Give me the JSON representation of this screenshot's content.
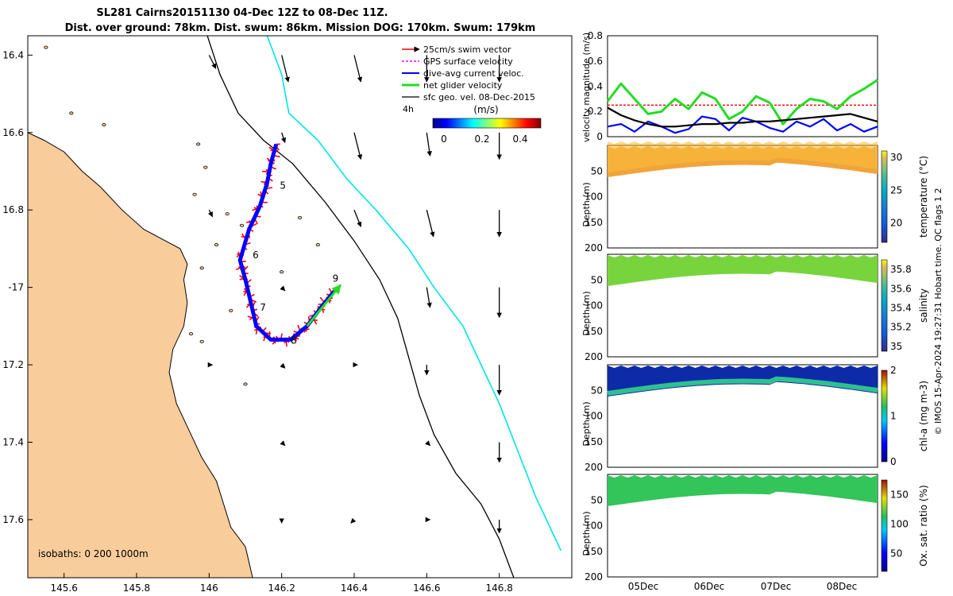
{
  "title": {
    "line1": "SL281 Cairns20151130 04-Dec 12Z to 08-Dec 11Z.",
    "line2": "Dist. over ground: 78km. Dist. swum: 86km. Mission DOG: 170km. Swum: 179km"
  },
  "colors": {
    "land": "#f9cc9b",
    "swim": "#ff0000",
    "gps": "#ff00ff",
    "current": "#0000ff",
    "net": "#22dd22",
    "geo": "#000000",
    "isobath200": "#000000",
    "isobath1000": "#00e5e5"
  },
  "chart_data": [
    {
      "type": "scatter",
      "name": "glider-track-map",
      "xlim": [
        145.5,
        147.0
      ],
      "ylim": [
        -17.75,
        -16.35
      ],
      "xticks": [
        145.6,
        145.8,
        146.0,
        146.2,
        146.4,
        146.6,
        146.8
      ],
      "xtick_labels": [
        "145.6",
        "145.8",
        "146",
        "146.2",
        "146.4",
        "146.6",
        "146.8"
      ],
      "yticks": [
        -16.4,
        -16.6,
        -16.8,
        -17.0,
        -17.2,
        -17.4,
        -17.6
      ],
      "ytick_labels": [
        "16.4",
        "16.6",
        "16.8",
        "-17",
        "17.2",
        "17.4",
        "17.6"
      ],
      "legend": [
        "25cm/s swim vector",
        "GPS surface velocity",
        "dive-avg current veloc.",
        "net glider velocity",
        "sfc geo. vel. 08-Dec-2015"
      ],
      "legend_extra": "4h",
      "colorbar": {
        "label": "(m/s)",
        "ticks": [
          "0",
          "0.2",
          "0.4"
        ],
        "range": [
          0,
          0.5
        ]
      },
      "isobath_label": "isobaths: 0   200  1000m",
      "track_labels": [
        {
          "text": "5",
          "lon": 146.195,
          "lat": -16.745
        },
        {
          "text": "6",
          "lon": 146.12,
          "lat": -16.925
        },
        {
          "text": "7",
          "lon": 146.14,
          "lat": -17.06
        },
        {
          "text": "8",
          "lon": 146.225,
          "lat": -17.145
        },
        {
          "text": "9",
          "lon": 146.34,
          "lat": -16.985
        }
      ],
      "track": [
        [
          146.185,
          -16.63
        ],
        [
          146.17,
          -16.68
        ],
        [
          146.16,
          -16.73
        ],
        [
          146.14,
          -16.79
        ],
        [
          146.11,
          -16.85
        ],
        [
          146.085,
          -16.93
        ],
        [
          146.1,
          -16.98
        ],
        [
          146.115,
          -17.04
        ],
        [
          146.13,
          -17.1
        ],
        [
          146.17,
          -17.135
        ],
        [
          146.225,
          -17.135
        ],
        [
          146.27,
          -17.1
        ],
        [
          146.31,
          -17.05
        ],
        [
          146.345,
          -17.01
        ]
      ],
      "isobath_200": [
        [
          145.995,
          -16.35
        ],
        [
          146.03,
          -16.45
        ],
        [
          146.08,
          -16.55
        ],
        [
          146.15,
          -16.62
        ],
        [
          146.23,
          -16.68
        ],
        [
          146.32,
          -16.78
        ],
        [
          146.4,
          -16.88
        ],
        [
          146.47,
          -16.98
        ],
        [
          146.52,
          -17.08
        ],
        [
          146.55,
          -17.18
        ],
        [
          146.58,
          -17.28
        ],
        [
          146.62,
          -17.38
        ],
        [
          146.68,
          -17.48
        ],
        [
          146.75,
          -17.56
        ],
        [
          146.8,
          -17.65
        ],
        [
          146.84,
          -17.75
        ]
      ],
      "isobath_1000": [
        [
          146.16,
          -16.35
        ],
        [
          146.2,
          -16.45
        ],
        [
          146.22,
          -16.55
        ],
        [
          146.3,
          -16.62
        ],
        [
          146.38,
          -16.72
        ],
        [
          146.46,
          -16.8
        ],
        [
          146.55,
          -16.9
        ],
        [
          146.62,
          -17.0
        ],
        [
          146.7,
          -17.1
        ],
        [
          146.75,
          -17.2
        ],
        [
          146.8,
          -17.3
        ],
        [
          146.85,
          -17.42
        ],
        [
          146.9,
          -17.54
        ],
        [
          146.97,
          -17.68
        ]
      ],
      "coast": [
        [
          145.5,
          -16.6
        ],
        [
          145.545,
          -16.62
        ],
        [
          145.6,
          -16.65
        ],
        [
          145.65,
          -16.7
        ],
        [
          145.7,
          -16.74
        ],
        [
          145.76,
          -16.8
        ],
        [
          145.82,
          -16.85
        ],
        [
          145.88,
          -16.88
        ],
        [
          145.92,
          -16.9
        ],
        [
          145.94,
          -16.94
        ],
        [
          145.93,
          -16.98
        ],
        [
          145.94,
          -17.04
        ],
        [
          145.93,
          -17.1
        ],
        [
          145.9,
          -17.16
        ],
        [
          145.89,
          -17.22
        ],
        [
          145.91,
          -17.3
        ],
        [
          145.95,
          -17.38
        ],
        [
          145.98,
          -17.44
        ],
        [
          146.02,
          -17.5
        ],
        [
          146.04,
          -17.56
        ],
        [
          146.06,
          -17.62
        ],
        [
          146.1,
          -17.67
        ],
        [
          146.12,
          -17.75
        ]
      ],
      "geo_vectors": [
        [
          146.0,
          -16.4,
          0.02,
          -0.04
        ],
        [
          146.2,
          -16.4,
          0.02,
          -0.08
        ],
        [
          146.4,
          -16.4,
          0.02,
          -0.08
        ],
        [
          146.6,
          -16.4,
          0.0,
          -0.08
        ],
        [
          146.8,
          -16.4,
          0.0,
          -0.08
        ],
        [
          146.2,
          -16.6,
          0.01,
          -0.03
        ],
        [
          146.4,
          -16.6,
          0.02,
          -0.08
        ],
        [
          146.6,
          -16.6,
          0.01,
          -0.07
        ],
        [
          146.8,
          -16.6,
          0.0,
          -0.08
        ],
        [
          146.0,
          -16.8,
          0.01,
          -0.02
        ],
        [
          146.4,
          -16.8,
          0.02,
          -0.05
        ],
        [
          146.6,
          -16.8,
          0.02,
          -0.08
        ],
        [
          146.8,
          -16.8,
          0.0,
          -0.08
        ],
        [
          146.2,
          -17.0,
          0.01,
          -0.01
        ],
        [
          146.6,
          -17.0,
          0.01,
          -0.06
        ],
        [
          146.8,
          -17.0,
          0.0,
          -0.09
        ],
        [
          146.0,
          -17.2,
          0.01,
          0.0
        ],
        [
          146.2,
          -17.2,
          0.01,
          -0.01
        ],
        [
          146.4,
          -17.2,
          0.01,
          0.0
        ],
        [
          146.6,
          -17.2,
          0.0,
          -0.03
        ],
        [
          146.8,
          -17.2,
          0.0,
          -0.09
        ],
        [
          146.2,
          -17.4,
          0.01,
          -0.01
        ],
        [
          146.6,
          -17.4,
          0.01,
          -0.01
        ],
        [
          146.8,
          -17.4,
          0.0,
          -0.06
        ],
        [
          146.2,
          -17.6,
          0.0,
          -0.01
        ],
        [
          146.4,
          -17.6,
          -0.01,
          -0.01
        ],
        [
          146.6,
          -17.6,
          0.01,
          0.0
        ],
        [
          146.8,
          -17.6,
          0.0,
          -0.04
        ]
      ]
    },
    {
      "type": "line",
      "name": "velocity-magnitude",
      "ylabel": "velocity magnitude (m/s)",
      "xlim": [
        0,
        1
      ],
      "ylim": [
        0,
        0.8
      ],
      "yticks": [
        "0",
        "0.2",
        "0.4",
        "0.6",
        "0.8"
      ],
      "series": [
        {
          "name": "swim",
          "color": "#ff0000",
          "values": [
            0.25,
            0.25,
            0.25,
            0.25,
            0.25,
            0.25,
            0.25,
            0.25,
            0.25,
            0.25,
            0.25,
            0.25,
            0.25,
            0.25,
            0.25,
            0.25,
            0.25,
            0.25,
            0.25,
            0.25,
            0.25
          ]
        },
        {
          "name": "net",
          "color": "#22dd22",
          "values": [
            0.28,
            0.42,
            0.3,
            0.18,
            0.2,
            0.3,
            0.22,
            0.35,
            0.3,
            0.14,
            0.2,
            0.32,
            0.27,
            0.1,
            0.22,
            0.3,
            0.28,
            0.22,
            0.32,
            0.38,
            0.45
          ]
        },
        {
          "name": "current",
          "color": "#0000ff",
          "values": [
            0.08,
            0.1,
            0.04,
            0.12,
            0.08,
            0.03,
            0.06,
            0.16,
            0.14,
            0.05,
            0.15,
            0.12,
            0.07,
            0.04,
            0.12,
            0.08,
            0.14,
            0.05,
            0.1,
            0.04,
            0.08
          ]
        },
        {
          "name": "geo",
          "color": "#000000",
          "values": [
            0.23,
            0.17,
            0.13,
            0.1,
            0.08,
            0.08,
            0.09,
            0.1,
            0.1,
            0.11,
            0.11,
            0.12,
            0.12,
            0.13,
            0.14,
            0.15,
            0.16,
            0.17,
            0.18,
            0.15,
            0.12
          ]
        }
      ]
    },
    {
      "type": "heatmap",
      "name": "temperature-section",
      "ylabel": "Depth (m)",
      "ylim": [
        0,
        200
      ],
      "yticks": [
        "50",
        "100",
        "150",
        "200"
      ],
      "colorbar_label": "temperature (°C)",
      "colorbar_range": [
        17,
        31
      ],
      "colorbar_ticks": [
        "30",
        "25",
        "20"
      ],
      "value": 29.5
    },
    {
      "type": "heatmap",
      "name": "salinity-section",
      "ylabel": "Depth (m)",
      "ylim": [
        0,
        200
      ],
      "yticks": [
        "50",
        "100",
        "150",
        "200"
      ],
      "colorbar_label": "salinity",
      "colorbar_range": [
        34.95,
        35.9
      ],
      "colorbar_ticks": [
        "35.8",
        "35.6",
        "35.4",
        "35.2",
        "35"
      ],
      "value": 35.5
    },
    {
      "type": "heatmap",
      "name": "chlorophyll-section",
      "ylabel": "Depth (m)",
      "ylim": [
        0,
        200
      ],
      "yticks": [
        "50",
        "100",
        "150",
        "200"
      ],
      "colorbar_label": "chl-a (mg m-3)",
      "colorbar_range": [
        0,
        2
      ],
      "colorbar_ticks": [
        "2",
        "1",
        "0"
      ],
      "value": 0.2
    },
    {
      "type": "heatmap",
      "name": "oxygen-section",
      "ylabel": "Depth (m)",
      "ylim": [
        0,
        200
      ],
      "yticks": [
        "50",
        "100",
        "150",
        "200"
      ],
      "colorbar_label": "Ox. sat. ratio (%)",
      "colorbar_range": [
        20,
        175
      ],
      "colorbar_ticks": [
        "150",
        "100",
        "50"
      ],
      "value": 105,
      "xticks": [
        "05Dec",
        "06Dec",
        "07Dec",
        "08Dec"
      ]
    }
  ],
  "footer": "© IMOS 15-Apr-2024 19:27:31 Hobart time. QC flags 1  2"
}
